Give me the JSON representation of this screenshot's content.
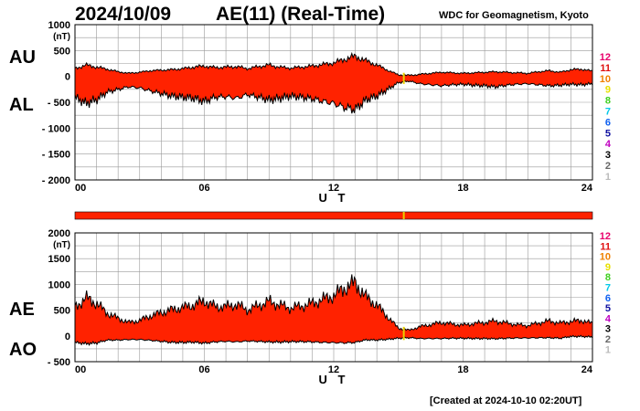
{
  "header": {
    "date": "2024/10/09",
    "title": "AE(11) (Real-Time)",
    "credit": "WDC for Geomagnetism, Kyoto",
    "created": "[Created at 2024-10-10 02:20UT]"
  },
  "colors": {
    "fill": "#ff2200",
    "outline": "#000000",
    "highlight": "#e8d000",
    "grid": "#999999"
  },
  "legend": {
    "entries": [
      {
        "label": "12",
        "color": "#e8006c"
      },
      {
        "label": "11",
        "color": "#e01010"
      },
      {
        "label": "10",
        "color": "#f08000"
      },
      {
        "label": "9",
        "color": "#e8e000"
      },
      {
        "label": "8",
        "color": "#40d020"
      },
      {
        "label": "7",
        "color": "#00c8e8"
      },
      {
        "label": "6",
        "color": "#1060f0"
      },
      {
        "label": "5",
        "color": "#1010a0"
      },
      {
        "label": "4",
        "color": "#c000c0"
      },
      {
        "label": "3",
        "color": "#000000"
      },
      {
        "label": "2",
        "color": "#666666"
      },
      {
        "label": "1",
        "color": "#bbbbbb"
      }
    ]
  },
  "chart_data": [
    {
      "type": "area",
      "name": "au-al-panel",
      "labels": {
        "upper": "AU",
        "lower": "AL"
      },
      "unit": "(nT)",
      "xlabel": "U T",
      "xlim": [
        0,
        24
      ],
      "xticks": [
        "00",
        "06",
        "12",
        "18",
        "24"
      ],
      "ylim": [
        -2000,
        1000
      ],
      "yticks": [
        1000,
        500,
        0,
        -500,
        -1000,
        -1500,
        -2000
      ],
      "ytick_labels": [
        "1000",
        "500",
        "0",
        "- 500",
        "- 1000",
        "- 1500",
        "- 2000"
      ],
      "x": [
        0,
        0.5,
        1,
        1.5,
        2,
        2.5,
        3,
        3.5,
        4,
        4.5,
        5,
        5.5,
        6,
        6.5,
        7,
        7.5,
        8,
        8.5,
        9,
        9.5,
        10,
        10.5,
        11,
        11.5,
        12,
        12.5,
        13,
        13.5,
        14,
        14.5,
        15,
        15.5,
        16,
        16.5,
        17,
        17.5,
        18,
        18.5,
        19,
        19.5,
        20,
        20.5,
        21,
        21.5,
        22,
        22.5,
        23,
        23.5,
        24
      ],
      "series": [
        {
          "name": "AU",
          "values": [
            150,
            220,
            180,
            140,
            90,
            60,
            80,
            110,
            120,
            130,
            150,
            180,
            200,
            170,
            180,
            190,
            150,
            190,
            220,
            180,
            160,
            180,
            200,
            230,
            260,
            330,
            390,
            300,
            220,
            120,
            30,
            20,
            40,
            60,
            80,
            70,
            60,
            70,
            80,
            90,
            80,
            70,
            60,
            90,
            110,
            80,
            130,
            140,
            100
          ]
        },
        {
          "name": "AL",
          "values": [
            -400,
            -520,
            -450,
            -300,
            -250,
            -200,
            -220,
            -280,
            -330,
            -380,
            -400,
            -420,
            -480,
            -400,
            -390,
            -420,
            -350,
            -400,
            -450,
            -420,
            -380,
            -400,
            -430,
            -480,
            -520,
            -600,
            -640,
            -450,
            -380,
            -250,
            -120,
            -90,
            -140,
            -160,
            -180,
            -160,
            -150,
            -170,
            -180,
            -200,
            -170,
            -150,
            -140,
            -160,
            -180,
            -170,
            -150,
            -160,
            -140
          ]
        }
      ],
      "highlight_x": 15.25
    },
    {
      "type": "area",
      "name": "ae-ao-panel",
      "labels": {
        "upper": "AE",
        "lower": "AO"
      },
      "unit": "(nT)",
      "xlabel": "U T",
      "xlim": [
        0,
        24
      ],
      "xticks": [
        "00",
        "06",
        "12",
        "18",
        "24"
      ],
      "ylim": [
        -500,
        2000
      ],
      "yticks": [
        2000,
        1500,
        1000,
        500,
        0,
        -500
      ],
      "ytick_labels": [
        "2000",
        "1500",
        "1000",
        "500",
        "0",
        "- 500"
      ],
      "x": [
        0,
        0.5,
        1,
        1.5,
        2,
        2.5,
        3,
        3.5,
        4,
        4.5,
        5,
        5.5,
        6,
        6.5,
        7,
        7.5,
        8,
        8.5,
        9,
        9.5,
        10,
        10.5,
        11,
        11.5,
        12,
        12.5,
        13,
        13.5,
        14,
        14.5,
        15,
        15.5,
        16,
        16.5,
        17,
        17.5,
        18,
        18.5,
        19,
        19.5,
        20,
        20.5,
        21,
        21.5,
        22,
        22.5,
        23,
        23.5,
        24
      ],
      "series": [
        {
          "name": "AE",
          "values": [
            550,
            740,
            630,
            440,
            340,
            260,
            300,
            390,
            450,
            510,
            550,
            600,
            680,
            570,
            570,
            610,
            500,
            590,
            670,
            600,
            540,
            580,
            630,
            710,
            780,
            930,
            1030,
            750,
            600,
            370,
            150,
            110,
            180,
            220,
            260,
            230,
            210,
            240,
            260,
            290,
            250,
            220,
            200,
            250,
            290,
            250,
            280,
            300,
            240
          ]
        },
        {
          "name": "AO",
          "values": [
            -125,
            -150,
            -135,
            -80,
            -80,
            -70,
            -70,
            -85,
            -105,
            -125,
            -125,
            -120,
            -140,
            -115,
            -105,
            -115,
            -100,
            -105,
            -115,
            -120,
            -110,
            -110,
            -115,
            -125,
            -130,
            -135,
            -125,
            -75,
            -80,
            -65,
            -45,
            -35,
            -50,
            -50,
            -50,
            -45,
            -45,
            -50,
            -50,
            -55,
            -45,
            -40,
            -40,
            -35,
            -35,
            -45,
            -10,
            -10,
            -20
          ]
        }
      ],
      "highlight_x": 15.25
    }
  ]
}
